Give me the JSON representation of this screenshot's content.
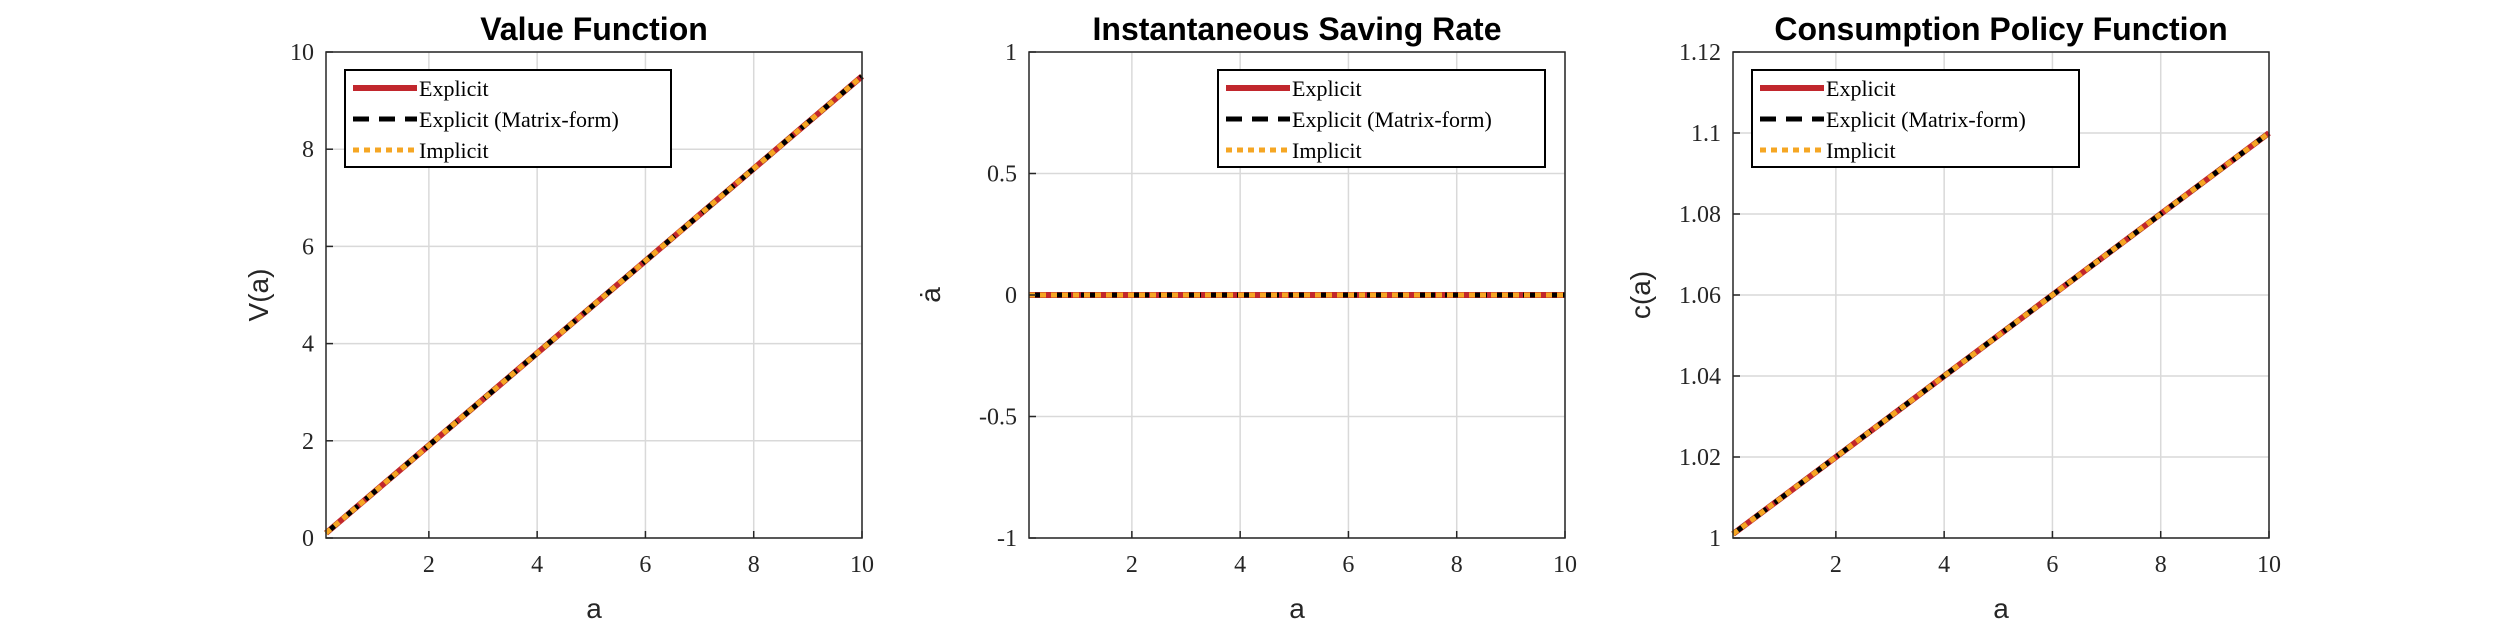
{
  "chart_data": [
    {
      "type": "line",
      "title": "Value Function",
      "xlabel": "a",
      "ylabel": "V(a)",
      "xlim": [
        0.1,
        10
      ],
      "ylim": [
        0,
        10
      ],
      "xticks": [
        2,
        4,
        6,
        8,
        10
      ],
      "xtick_labels": [
        "2",
        "4",
        "6",
        "8",
        "10"
      ],
      "yticks": [
        0,
        2,
        4,
        6,
        8,
        10
      ],
      "ytick_labels": [
        "0",
        "2",
        "4",
        "6",
        "8",
        "10"
      ],
      "grid": true,
      "legend_position": "top-left",
      "series": [
        {
          "name": "Explicit",
          "x": [
            0.1,
            10
          ],
          "y": [
            0.1,
            9.5
          ]
        },
        {
          "name": "Explicit (Matrix-form)",
          "x": [
            0.1,
            10
          ],
          "y": [
            0.1,
            9.5
          ]
        },
        {
          "name": "Implicit",
          "x": [
            0.1,
            10
          ],
          "y": [
            0.1,
            9.5
          ]
        }
      ]
    },
    {
      "type": "line",
      "title": "Instantaneous Saving Rate",
      "xlabel": "a",
      "ylabel": "ȧ",
      "xlim": [
        0.1,
        10
      ],
      "ylim": [
        -1,
        1
      ],
      "xticks": [
        2,
        4,
        6,
        8,
        10
      ],
      "xtick_labels": [
        "2",
        "4",
        "6",
        "8",
        "10"
      ],
      "yticks": [
        -1,
        -0.5,
        0,
        0.5,
        1
      ],
      "ytick_labels": [
        "-1",
        "-0.5",
        "0",
        "0.5",
        "1"
      ],
      "grid": true,
      "legend_position": "top-right",
      "series": [
        {
          "name": "Explicit",
          "x": [
            0.1,
            10
          ],
          "y": [
            0,
            0
          ]
        },
        {
          "name": "Explicit (Matrix-form)",
          "x": [
            0.1,
            10
          ],
          "y": [
            0,
            0
          ]
        },
        {
          "name": "Implicit",
          "x": [
            0.1,
            10
          ],
          "y": [
            0,
            0
          ]
        }
      ]
    },
    {
      "type": "line",
      "title": "Consumption Policy Function",
      "xlabel": "a",
      "ylabel": "c(a)",
      "xlim": [
        0.1,
        10
      ],
      "ylim": [
        1,
        1.12
      ],
      "xticks": [
        2,
        4,
        6,
        8,
        10
      ],
      "xtick_labels": [
        "2",
        "4",
        "6",
        "8",
        "10"
      ],
      "yticks": [
        1,
        1.02,
        1.04,
        1.06,
        1.08,
        1.1,
        1.12
      ],
      "ytick_labels": [
        "1",
        "1.02",
        "1.04",
        "1.06",
        "1.08",
        "1.1",
        "1.12"
      ],
      "grid": true,
      "legend_position": "top-left",
      "series": [
        {
          "name": "Explicit",
          "x": [
            0.1,
            10
          ],
          "y": [
            1.001,
            1.1
          ]
        },
        {
          "name": "Explicit (Matrix-form)",
          "x": [
            0.1,
            10
          ],
          "y": [
            1.001,
            1.1
          ]
        },
        {
          "name": "Implicit",
          "x": [
            0.1,
            10
          ],
          "y": [
            1.001,
            1.1
          ]
        }
      ]
    }
  ],
  "series_colors": [
    "#c1272d",
    "#000000",
    "#f5a623"
  ],
  "series_styles": [
    "solid",
    "dashed",
    "dotted"
  ],
  "grid_color": "#d9d9d9"
}
